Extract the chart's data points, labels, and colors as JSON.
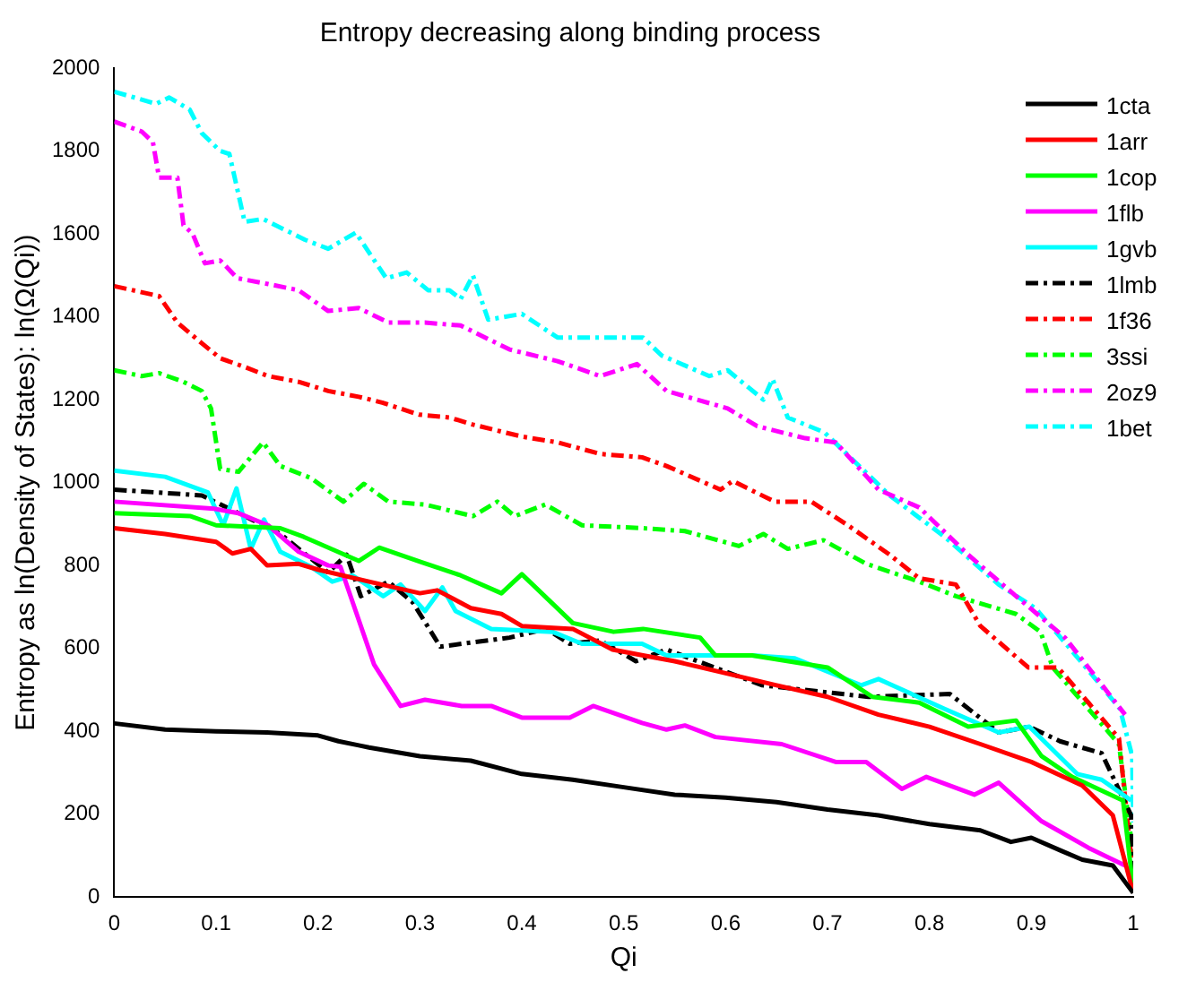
{
  "chart_data": {
    "type": "line",
    "title": "Entropy decreasing along binding process",
    "xlabel": "Qi",
    "ylabel": "Entropy as ln(Density of States): ln(Ω(Qi))",
    "xlim": [
      0,
      1
    ],
    "xticks": [
      0,
      0.1,
      0.2,
      0.3,
      0.4,
      0.5,
      0.6,
      0.7,
      0.8,
      0.9,
      1
    ],
    "ylim": [
      0,
      2000
    ],
    "yticks": [
      0,
      200,
      400,
      600,
      800,
      1000,
      1200,
      1400,
      1600,
      1800,
      2000
    ],
    "grid": false,
    "legend": "top right",
    "marker": "none",
    "series": [
      {
        "name": "1cta",
        "color": "#000000",
        "line_style": "solid",
        "x": [
          0,
          0.05,
          0.1,
          0.15,
          0.2,
          0.22,
          0.24,
          0.25,
          0.3,
          0.35,
          0.4,
          0.45,
          0.5,
          0.55,
          0.6,
          0.65,
          0.7,
          0.75,
          0.8,
          0.85,
          0.88,
          0.9,
          0.93,
          0.95,
          0.98,
          1
        ],
        "values": [
          419,
          404,
          400,
          397,
          390,
          376,
          366,
          361,
          340,
          329,
          297,
          283,
          265,
          247,
          240,
          229,
          211,
          197,
          176,
          161,
          133,
          143,
          111,
          90,
          76,
          10
        ]
      },
      {
        "name": "1arr",
        "color": "#ff0000",
        "line_style": "solid",
        "x": [
          0,
          0.05,
          0.1,
          0.116,
          0.134,
          0.15,
          0.181,
          0.2,
          0.25,
          0.3,
          0.317,
          0.35,
          0.38,
          0.4,
          0.45,
          0.489,
          0.519,
          0.55,
          0.6,
          0.65,
          0.7,
          0.75,
          0.8,
          0.85,
          0.9,
          0.95,
          0.98,
          1
        ],
        "values": [
          890,
          876,
          857,
          829,
          840,
          800,
          804,
          790,
          761,
          733,
          740,
          697,
          683,
          654,
          647,
          597,
          583,
          569,
          540,
          511,
          483,
          440,
          411,
          369,
          326,
          269,
          197,
          10
        ]
      },
      {
        "name": "1cop",
        "color": "#00ff00",
        "line_style": "solid",
        "x": [
          0,
          0.075,
          0.1,
          0.163,
          0.186,
          0.24,
          0.26,
          0.3,
          0.34,
          0.38,
          0.4,
          0.45,
          0.49,
          0.519,
          0.575,
          0.59,
          0.626,
          0.7,
          0.744,
          0.79,
          0.838,
          0.885,
          0.91,
          0.94,
          0.99,
          1
        ],
        "values": [
          926,
          919,
          897,
          890,
          869,
          811,
          843,
          809,
          776,
          733,
          779,
          661,
          640,
          647,
          626,
          583,
          583,
          554,
          483,
          469,
          411,
          426,
          340,
          290,
          233,
          20
        ]
      },
      {
        "name": "1flb",
        "color": "#ff00ff",
        "line_style": "solid",
        "x": [
          0,
          0.098,
          0.122,
          0.151,
          0.181,
          0.21,
          0.222,
          0.255,
          0.281,
          0.305,
          0.341,
          0.37,
          0.4,
          0.447,
          0.47,
          0.518,
          0.542,
          0.56,
          0.59,
          0.655,
          0.708,
          0.738,
          0.773,
          0.797,
          0.844,
          0.868,
          0.91,
          0.956,
          0.992
        ],
        "values": [
          954,
          937,
          926,
          897,
          833,
          800,
          797,
          561,
          461,
          476,
          461,
          461,
          433,
          433,
          461,
          420,
          404,
          414,
          386,
          369,
          326,
          326,
          261,
          290,
          247,
          276,
          183,
          119,
          76
        ]
      },
      {
        "name": "1gvb",
        "color": "#00ffff",
        "line_style": "solid",
        "x": [
          0,
          0.05,
          0.092,
          0.107,
          0.12,
          0.134,
          0.147,
          0.163,
          0.193,
          0.214,
          0.234,
          0.264,
          0.281,
          0.305,
          0.322,
          0.335,
          0.37,
          0.43,
          0.459,
          0.518,
          0.542,
          0.626,
          0.668,
          0.733,
          0.75,
          0.815,
          0.868,
          0.898,
          0.945,
          0.969,
          0.998
        ],
        "values": [
          1029,
          1014,
          976,
          897,
          986,
          840,
          911,
          833,
          797,
          761,
          776,
          726,
          754,
          690,
          747,
          690,
          647,
          640,
          611,
          611,
          583,
          583,
          576,
          511,
          526,
          454,
          397,
          411,
          297,
          283,
          233
        ]
      },
      {
        "name": "1lmb",
        "color": "#000000",
        "line_style": "dashed",
        "x": [
          0,
          0.086,
          0.128,
          0.163,
          0.21,
          0.228,
          0.242,
          0.269,
          0.293,
          0.32,
          0.341,
          0.388,
          0.424,
          0.447,
          0.477,
          0.512,
          0.542,
          0.636,
          0.74,
          0.82,
          0.868,
          0.898,
          0.928,
          0.969,
          0.998,
          1
        ],
        "values": [
          983,
          969,
          919,
          876,
          783,
          826,
          726,
          761,
          711,
          604,
          611,
          626,
          647,
          611,
          619,
          569,
          597,
          511,
          483,
          490,
          397,
          411,
          376,
          347,
          197,
          20
        ]
      },
      {
        "name": "1f36",
        "color": "#ff0000",
        "line_style": "dashed",
        "x": [
          0,
          0.044,
          0.062,
          0.086,
          0.104,
          0.128,
          0.151,
          0.181,
          0.21,
          0.24,
          0.263,
          0.299,
          0.329,
          0.352,
          0.4,
          0.435,
          0.477,
          0.518,
          0.542,
          0.595,
          0.607,
          0.648,
          0.684,
          0.72,
          0.761,
          0.79,
          0.826,
          0.85,
          0.897,
          0.926,
          0.956,
          0.986,
          1
        ],
        "values": [
          1474,
          1450,
          1386,
          1336,
          1300,
          1279,
          1257,
          1243,
          1221,
          1207,
          1193,
          1164,
          1157,
          1140,
          1111,
          1097,
          1069,
          1061,
          1040,
          983,
          1004,
          954,
          954,
          897,
          826,
          769,
          754,
          654,
          554,
          554,
          469,
          383,
          50
        ]
      },
      {
        "name": "3ssi",
        "color": "#00ff00",
        "line_style": "dashed",
        "x": [
          0,
          0.027,
          0.044,
          0.068,
          0.086,
          0.095,
          0.104,
          0.122,
          0.146,
          0.163,
          0.193,
          0.225,
          0.245,
          0.269,
          0.305,
          0.352,
          0.376,
          0.393,
          0.423,
          0.459,
          0.518,
          0.56,
          0.613,
          0.637,
          0.661,
          0.696,
          0.738,
          0.79,
          0.826,
          0.885,
          0.909,
          0.921,
          0.956,
          0.986,
          1
        ],
        "values": [
          1271,
          1257,
          1264,
          1243,
          1221,
          1179,
          1033,
          1026,
          1097,
          1040,
          1011,
          954,
          997,
          954,
          947,
          919,
          954,
          919,
          947,
          897,
          890,
          883,
          847,
          876,
          840,
          861,
          804,
          761,
          726,
          683,
          640,
          554,
          454,
          369,
          100
        ]
      },
      {
        "name": "2oz9",
        "color": "#ff00ff",
        "line_style": "dashed",
        "x": [
          0,
          0.027,
          0.038,
          0.044,
          0.062,
          0.068,
          0.077,
          0.089,
          0.104,
          0.121,
          0.151,
          0.181,
          0.21,
          0.24,
          0.269,
          0.305,
          0.34,
          0.388,
          0.435,
          0.477,
          0.513,
          0.542,
          0.602,
          0.631,
          0.678,
          0.708,
          0.75,
          0.79,
          0.838,
          0.885,
          0.933,
          0.956,
          0.992
        ],
        "values": [
          1871,
          1847,
          1821,
          1736,
          1736,
          1621,
          1600,
          1529,
          1536,
          1493,
          1479,
          1464,
          1414,
          1421,
          1386,
          1386,
          1379,
          1321,
          1293,
          1257,
          1286,
          1221,
          1179,
          1136,
          1107,
          1097,
          983,
          940,
          826,
          726,
          626,
          554,
          440
        ]
      },
      {
        "name": "1bet",
        "color": "#00ffff",
        "line_style": "dashed",
        "x": [
          0,
          0.041,
          0.054,
          0.074,
          0.086,
          0.104,
          0.113,
          0.128,
          0.146,
          0.187,
          0.21,
          0.237,
          0.267,
          0.287,
          0.308,
          0.329,
          0.34,
          0.352,
          0.367,
          0.4,
          0.435,
          0.494,
          0.519,
          0.537,
          0.584,
          0.602,
          0.637,
          0.646,
          0.661,
          0.697,
          0.761,
          0.815,
          0.868,
          0.904,
          0.934,
          0.963,
          0.987,
          0.999,
          1
        ],
        "values": [
          1943,
          1914,
          1929,
          1900,
          1843,
          1800,
          1793,
          1629,
          1636,
          1586,
          1564,
          1603,
          1493,
          1507,
          1464,
          1464,
          1443,
          1500,
          1393,
          1407,
          1350,
          1350,
          1350,
          1307,
          1257,
          1271,
          1200,
          1250,
          1157,
          1121,
          969,
          869,
          754,
          697,
          611,
          526,
          454,
          340,
          180
        ]
      }
    ]
  }
}
